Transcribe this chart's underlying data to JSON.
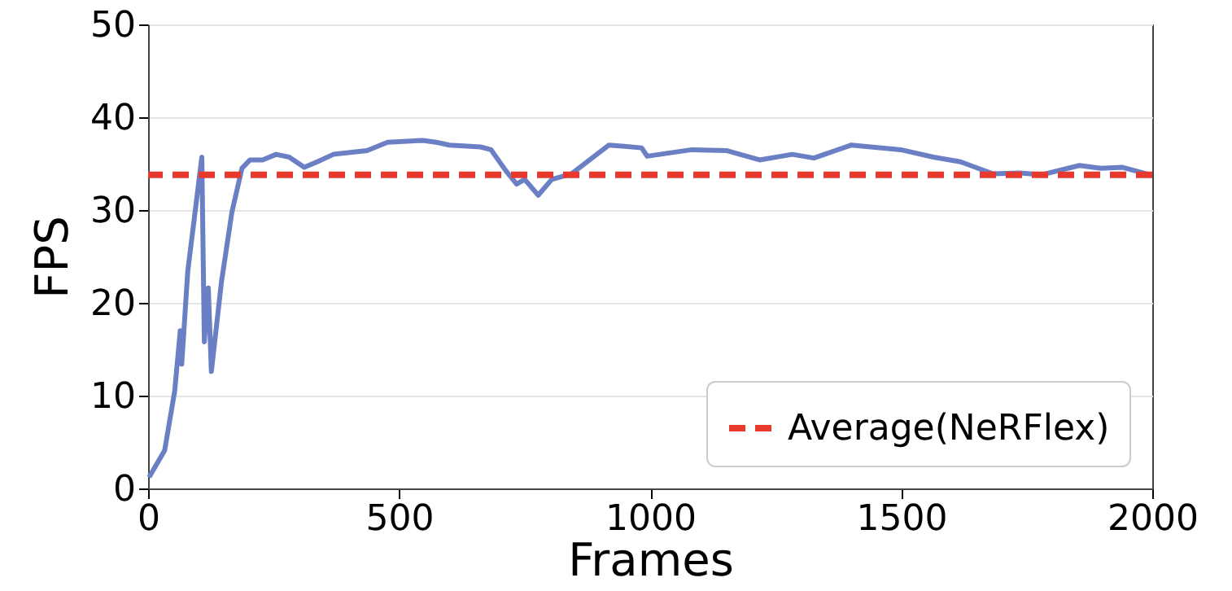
{
  "chart_data": {
    "type": "line",
    "xlabel": "Frames",
    "ylabel": "FPS",
    "x": [
      2,
      33,
      53,
      64,
      67,
      79,
      95,
      107,
      112,
      120,
      126,
      146,
      167,
      187,
      203,
      228,
      255,
      281,
      311,
      337,
      369,
      436,
      477,
      547,
      574,
      600,
      662,
      683,
      713,
      734,
      750,
      777,
      804,
      843,
      918,
      983,
      994,
      1083,
      1153,
      1218,
      1283,
      1326,
      1401,
      1499,
      1564,
      1618,
      1683,
      1737,
      1780,
      1855,
      1898,
      1941,
      1995
    ],
    "series": [
      {
        "color": "#6b7fc4",
        "values": [
          1.2,
          4.1,
          10.5,
          17,
          13.4,
          23.4,
          30.4,
          35.7,
          15.8,
          21.6,
          12.6,
          22.2,
          29.8,
          34.5,
          35.4,
          35.4,
          36,
          35.7,
          34.6,
          35.2,
          36,
          36.4,
          37.3,
          37.5,
          37.3,
          37,
          36.8,
          36.5,
          34.2,
          32.8,
          33.3,
          31.6,
          33.3,
          33.9,
          37,
          36.7,
          35.8,
          36.5,
          36.4,
          35.4,
          36,
          35.6,
          37,
          36.5,
          35.7,
          35.2,
          33.9,
          34,
          33.8,
          34.8,
          34.5,
          34.6,
          33.8
        ]
      }
    ],
    "xlim": [
      0,
      2000
    ],
    "xticks": [
      0,
      500,
      1000,
      1500,
      2000
    ],
    "ylim": [
      0,
      50
    ],
    "yticks": [
      0,
      10,
      20,
      30,
      40,
      50
    ],
    "grid": "y",
    "legend": "bottom right",
    "line_style": "solid",
    "ref_lines": [
      {
        "axis": "y",
        "value": 33.8,
        "label": "Average(NeRFlex)",
        "color": "#e8392f",
        "line_style": "dashed"
      }
    ]
  }
}
